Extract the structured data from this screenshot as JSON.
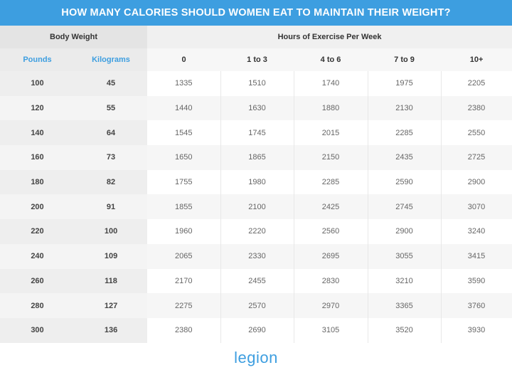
{
  "title": "HOW MANY CALORIES SHOULD WOMEN EAT TO MAINTAIN THEIR WEIGHT?",
  "table": {
    "group_headers": [
      "Body Weight",
      "Hours of Exercise Per Week"
    ],
    "columns": [
      "Pounds",
      "Kilograms",
      "0",
      "1 to 3",
      "4 to 6",
      "7 to 9",
      "10+"
    ],
    "rows": [
      [
        100,
        45,
        1335,
        1510,
        1740,
        1975,
        2205
      ],
      [
        120,
        55,
        1440,
        1630,
        1880,
        2130,
        2380
      ],
      [
        140,
        64,
        1545,
        1745,
        2015,
        2285,
        2550
      ],
      [
        160,
        73,
        1650,
        1865,
        2150,
        2435,
        2725
      ],
      [
        180,
        82,
        1755,
        1980,
        2285,
        2590,
        2900
      ],
      [
        200,
        91,
        1855,
        2100,
        2425,
        2745,
        3070
      ],
      [
        220,
        100,
        1960,
        2220,
        2560,
        2900,
        3240
      ],
      [
        240,
        109,
        2065,
        2330,
        2695,
        3055,
        3415
      ],
      [
        260,
        118,
        2170,
        2455,
        2830,
        3210,
        3590
      ],
      [
        280,
        127,
        2275,
        2570,
        2970,
        3365,
        3760
      ],
      [
        300,
        136,
        2380,
        2690,
        3105,
        3520,
        3930
      ]
    ]
  },
  "footer": {
    "logo": "legion"
  }
}
